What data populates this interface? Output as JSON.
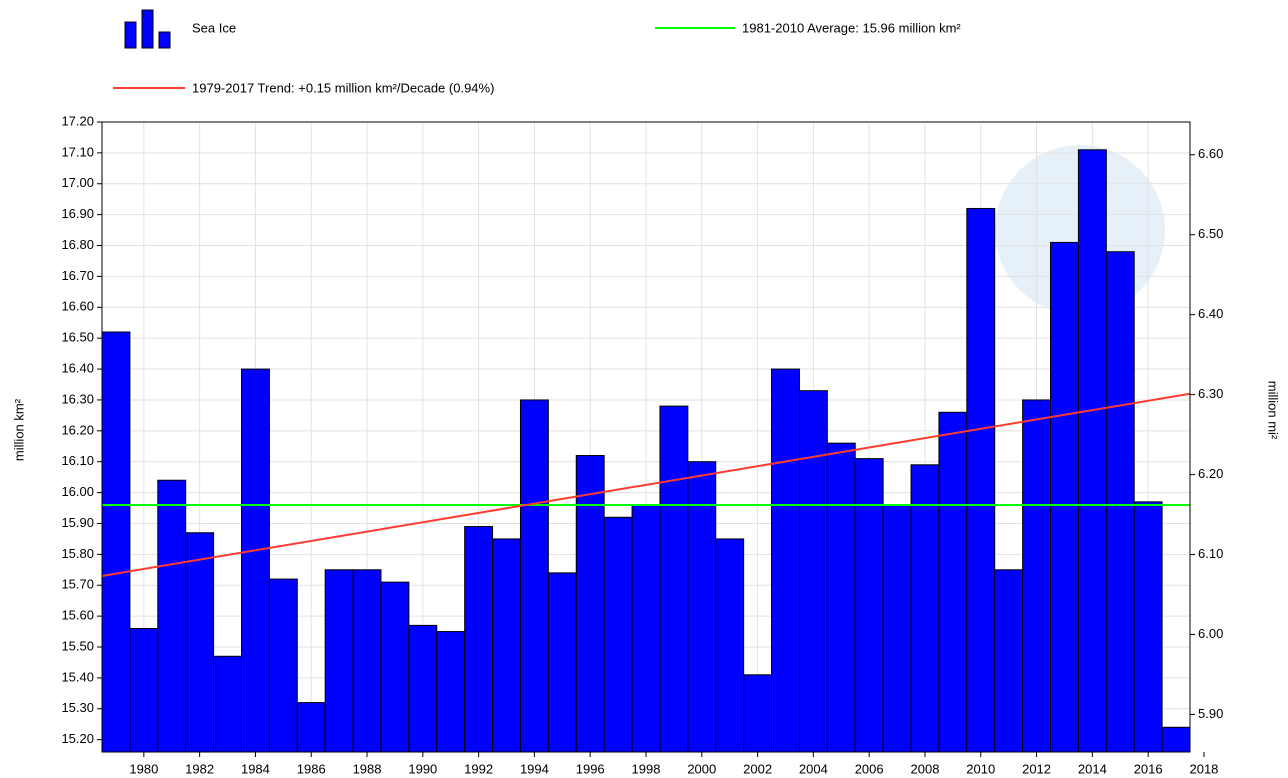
{
  "chart_data": {
    "type": "bar",
    "series": [
      {
        "name": "Sea Ice",
        "color": "#0000ff",
        "values": [
          16.52,
          15.56,
          16.04,
          15.87,
          15.47,
          16.4,
          15.72,
          15.32,
          15.75,
          15.75,
          15.71,
          15.57,
          15.55,
          15.89,
          15.85,
          16.3,
          15.74,
          16.12,
          15.92,
          15.96,
          16.28,
          16.1,
          15.85,
          15.41,
          16.4,
          16.33,
          16.16,
          16.11,
          15.96,
          16.09,
          16.26,
          16.92,
          15.75,
          16.3,
          16.81,
          17.11,
          16.78,
          15.97,
          15.24
        ]
      }
    ],
    "x": [
      1979,
      1980,
      1981,
      1982,
      1983,
      1984,
      1985,
      1986,
      1987,
      1988,
      1989,
      1990,
      1991,
      1992,
      1993,
      1994,
      1995,
      1996,
      1997,
      1998,
      1999,
      2000,
      2001,
      2002,
      2003,
      2004,
      2005,
      2006,
      2007,
      2008,
      2009,
      2010,
      2011,
      2012,
      2013,
      2014,
      2015,
      2016,
      2017
    ],
    "average": {
      "name": "1981-2010 Average: 15.96 million km²",
      "color": "#00ff00",
      "value": 15.96
    },
    "trend": {
      "name": "1979-2017 Trend: +0.15 million km²/Decade (0.94%)",
      "color": "#ff3b30",
      "x": [
        1978.5,
        2017.5
      ],
      "values": [
        15.73,
        16.32
      ]
    },
    "ylabel": "million km²",
    "y2label": "million mi²",
    "xlim": [
      1978.5,
      2017.5
    ],
    "xticks": [
      1980,
      1982,
      1984,
      1986,
      1988,
      1990,
      1992,
      1994,
      1996,
      1998,
      2000,
      2002,
      2004,
      2006,
      2008,
      2010,
      2012,
      2014,
      2016,
      2018
    ],
    "ylim": [
      15.16,
      17.2
    ],
    "yticks": [
      {
        "value": 15.2,
        "label": "15.20"
      },
      {
        "value": 15.3,
        "label": "15.30"
      },
      {
        "value": 15.4,
        "label": "15.40"
      },
      {
        "value": 15.5,
        "label": "15.50"
      },
      {
        "value": 15.6,
        "label": "15.60"
      },
      {
        "value": 15.7,
        "label": "15.70"
      },
      {
        "value": 15.8,
        "label": "15.80"
      },
      {
        "value": 15.9,
        "label": "15.90"
      },
      {
        "value": 16,
        "label": "16.00"
      },
      {
        "value": 16.1,
        "label": "16.10"
      },
      {
        "value": 16.2,
        "label": "16.20"
      },
      {
        "value": 16.3,
        "label": "16.30"
      },
      {
        "value": 16.4,
        "label": "16.40"
      },
      {
        "value": 16.5,
        "label": "16.50"
      },
      {
        "value": 16.6,
        "label": "16.60"
      },
      {
        "value": 16.7,
        "label": "16.70"
      },
      {
        "value": 16.8,
        "label": "16.80"
      },
      {
        "value": 16.9,
        "label": "16.90"
      },
      {
        "value": 17,
        "label": "17.00"
      },
      {
        "value": 17.1,
        "label": "17.10"
      },
      {
        "value": 17.2,
        "label": "17.20"
      }
    ],
    "y2lim": [
      5.853,
      6.641
    ],
    "y2ticks": [
      {
        "value": 5.9,
        "label": "5.90"
      },
      {
        "value": 6,
        "label": "6.00"
      },
      {
        "value": 6.1,
        "label": "6.10"
      },
      {
        "value": 6.2,
        "label": "6.20"
      },
      {
        "value": 6.3,
        "label": "6.30"
      },
      {
        "value": 6.4,
        "label": "6.40"
      },
      {
        "value": 6.5,
        "label": "6.50"
      },
      {
        "value": 6.6,
        "label": "6.60"
      }
    ],
    "grid": true
  }
}
